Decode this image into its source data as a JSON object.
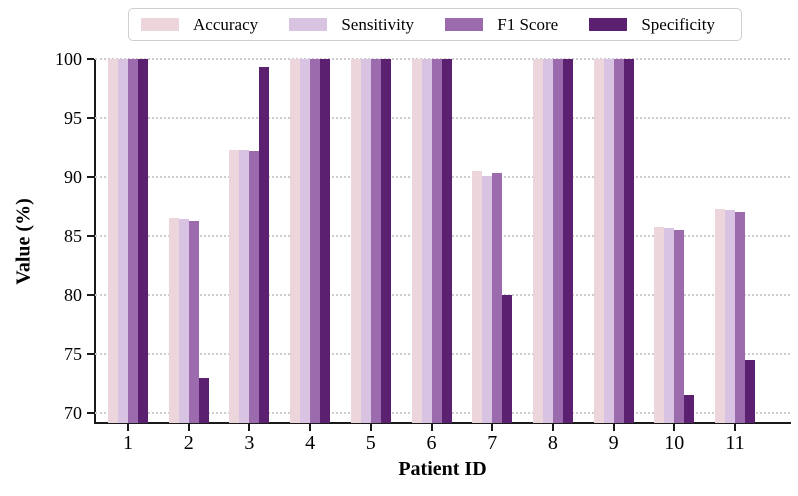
{
  "chart_data": {
    "type": "bar",
    "title": "",
    "xlabel": "Patient ID",
    "ylabel": "Value (%)",
    "categories": [
      "1",
      "2",
      "3",
      "4",
      "5",
      "6",
      "7",
      "8",
      "9",
      "10",
      "11"
    ],
    "series": [
      {
        "name": "Accuracy",
        "color": "#EDD5DC",
        "values": [
          100,
          86.5,
          92.3,
          100,
          100,
          100,
          90.5,
          100,
          100,
          85.8,
          87.3
        ]
      },
      {
        "name": "Sensitivity",
        "color": "#D9C3E2",
        "values": [
          100,
          86.4,
          92.3,
          100,
          100,
          100,
          90.1,
          100,
          100,
          85.7,
          87.2
        ]
      },
      {
        "name": "F1 Score",
        "color": "#9B6BAE",
        "values": [
          100,
          86.3,
          92.2,
          100,
          100,
          100,
          90.3,
          100,
          100,
          85.5,
          87.0
        ]
      },
      {
        "name": "Specificity",
        "color": "#5B2170",
        "values": [
          100,
          73.0,
          99.3,
          100,
          100,
          100,
          80.0,
          100,
          100,
          71.5,
          74.5
        ]
      }
    ],
    "yticks": [
      70,
      75,
      80,
      85,
      90,
      95,
      100
    ],
    "ylim": [
      69.15,
      100
    ],
    "grid": "horizontal-dotted",
    "legend_position": "top-center",
    "background": "#ffffff"
  }
}
